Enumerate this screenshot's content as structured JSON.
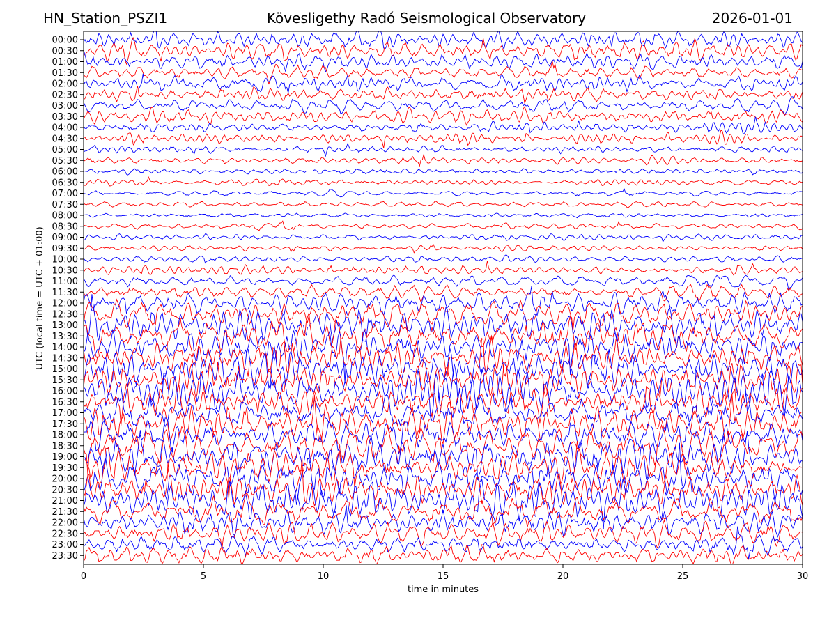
{
  "header": {
    "station": "HN_Station_PSZI1",
    "title": "Kövesligethy Radó Seismological Observatory",
    "date": "2026-01-01"
  },
  "chart_data": {
    "type": "line",
    "xlabel": "time in minutes",
    "ylabel": "UTC (local time = UTC + 01:00)",
    "xlim": [
      0,
      30
    ],
    "x_ticks": [
      0,
      5,
      10,
      15,
      20,
      25,
      30
    ],
    "row_labels": [
      "00:00",
      "00:30",
      "01:00",
      "01:30",
      "02:00",
      "02:30",
      "03:00",
      "03:30",
      "04:00",
      "04:30",
      "05:00",
      "05:30",
      "06:00",
      "06:30",
      "07:00",
      "07:30",
      "08:00",
      "08:30",
      "09:00",
      "09:30",
      "10:00",
      "10:30",
      "11:00",
      "11:30",
      "12:00",
      "12:30",
      "13:00",
      "13:30",
      "14:00",
      "14:30",
      "15:00",
      "15:30",
      "16:00",
      "16:30",
      "17:00",
      "17:30",
      "18:00",
      "18:30",
      "19:00",
      "19:30",
      "20:00",
      "20:30",
      "21:00",
      "21:30",
      "22:00",
      "22:30",
      "23:00",
      "23:30"
    ],
    "trace_colors": [
      "#0000ff",
      "#ff0000"
    ],
    "row_amplitude_rel": [
      1.4,
      1.4,
      1.3,
      1.3,
      1.25,
      1.2,
      1.15,
      1.1,
      0.9,
      0.8,
      0.65,
      0.6,
      0.55,
      0.5,
      0.45,
      0.45,
      0.45,
      0.45,
      0.45,
      0.5,
      0.55,
      0.7,
      0.9,
      1.2,
      1.8,
      2.2,
      2.5,
      2.7,
      2.8,
      2.8,
      2.8,
      2.8,
      2.8,
      2.8,
      2.8,
      2.8,
      2.8,
      2.8,
      2.8,
      2.8,
      2.8,
      2.6,
      2.4,
      2.2,
      2.0,
      1.8,
      1.6,
      1.5
    ],
    "grid": false,
    "legend": "none"
  }
}
